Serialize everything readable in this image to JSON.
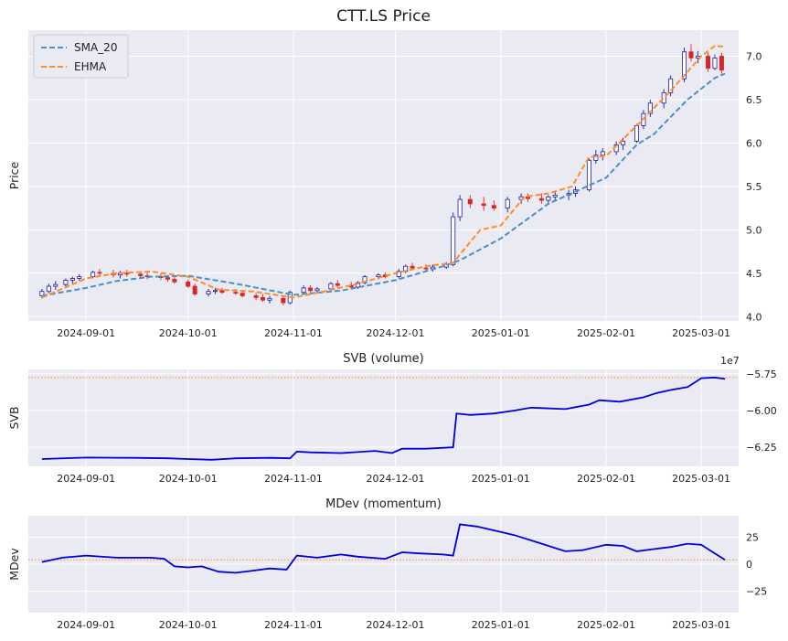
{
  "chart_data": [
    {
      "type": "candlestick",
      "title": "CTT.LS Price",
      "ylabel": "Price",
      "ylim": [
        3.95,
        7.3
      ],
      "yticks": [
        4.0,
        4.5,
        5.0,
        5.5,
        6.0,
        6.5,
        7.0
      ],
      "ytick_labels": [
        "4.0",
        "4.5",
        "5.0",
        "5.5",
        "6.0",
        "6.5",
        "7.0"
      ],
      "xrange": [
        "2024-08-15",
        "2025-03-12"
      ],
      "xticks": [
        "2024-09-01",
        "2024-10-01",
        "2024-11-01",
        "2024-12-01",
        "2025-01-01",
        "2025-02-01",
        "2025-03-01"
      ],
      "grid": true,
      "legend_position": "top-left",
      "colors": {
        "up": "#1a1aa6",
        "down": "#d62728",
        "sma": "#4a8fc7",
        "ehma": "#ff8c29",
        "background": "#eaeaf2"
      },
      "series": [
        {
          "name": "SMA_20",
          "style": "dashed",
          "color": "#4a8fc7",
          "points": [
            [
              "2024-08-19",
              4.24
            ],
            [
              "2024-09-01",
              4.33
            ],
            [
              "2024-09-10",
              4.41
            ],
            [
              "2024-09-20",
              4.46
            ],
            [
              "2024-10-01",
              4.47
            ],
            [
              "2024-10-15",
              4.38
            ],
            [
              "2024-11-01",
              4.25
            ],
            [
              "2024-11-15",
              4.3
            ],
            [
              "2024-12-01",
              4.42
            ],
            [
              "2024-12-15",
              4.58
            ],
            [
              "2024-12-20",
              4.65
            ],
            [
              "2025-01-01",
              4.9
            ],
            [
              "2025-01-15",
              5.3
            ],
            [
              "2025-02-01",
              5.6
            ],
            [
              "2025-02-10",
              5.98
            ],
            [
              "2025-02-15",
              6.1
            ],
            [
              "2025-02-25",
              6.5
            ],
            [
              "2025-03-05",
              6.75
            ],
            [
              "2025-03-08",
              6.8
            ]
          ]
        },
        {
          "name": "EHMA",
          "style": "dashed",
          "color": "#ff8c29",
          "points": [
            [
              "2024-08-19",
              4.22
            ],
            [
              "2024-09-01",
              4.44
            ],
            [
              "2024-09-10",
              4.5
            ],
            [
              "2024-09-20",
              4.52
            ],
            [
              "2024-10-01",
              4.46
            ],
            [
              "2024-10-10",
              4.31
            ],
            [
              "2024-10-20",
              4.29
            ],
            [
              "2024-11-01",
              4.22
            ],
            [
              "2024-11-10",
              4.29
            ],
            [
              "2024-11-20",
              4.38
            ],
            [
              "2024-12-01",
              4.5
            ],
            [
              "2024-12-10",
              4.58
            ],
            [
              "2024-12-18",
              4.62
            ],
            [
              "2024-12-26",
              5.0
            ],
            [
              "2025-01-01",
              5.05
            ],
            [
              "2025-01-08",
              5.38
            ],
            [
              "2025-01-15",
              5.42
            ],
            [
              "2025-01-22",
              5.5
            ],
            [
              "2025-01-27",
              5.84
            ],
            [
              "2025-02-01",
              5.85
            ],
            [
              "2025-02-10",
              6.2
            ],
            [
              "2025-02-20",
              6.6
            ],
            [
              "2025-03-01",
              7.0
            ],
            [
              "2025-03-05",
              7.12
            ],
            [
              "2025-03-08",
              7.11
            ]
          ]
        }
      ],
      "candles": [
        [
          "2024-08-19",
          4.24,
          4.32,
          4.21,
          4.29
        ],
        [
          "2024-08-21",
          4.29,
          4.38,
          4.27,
          4.35
        ],
        [
          "2024-08-23",
          4.35,
          4.41,
          4.31,
          4.37
        ],
        [
          "2024-08-26",
          4.37,
          4.44,
          4.34,
          4.42
        ],
        [
          "2024-08-28",
          4.42,
          4.46,
          4.38,
          4.44
        ],
        [
          "2024-08-30",
          4.44,
          4.49,
          4.41,
          4.46
        ],
        [
          "2024-09-03",
          4.46,
          4.53,
          4.44,
          4.51
        ],
        [
          "2024-09-05",
          4.51,
          4.55,
          4.47,
          4.5
        ],
        [
          "2024-09-09",
          4.5,
          4.54,
          4.45,
          4.48
        ],
        [
          "2024-09-11",
          4.48,
          4.53,
          4.44,
          4.5
        ],
        [
          "2024-09-13",
          4.5,
          4.54,
          4.46,
          4.49
        ],
        [
          "2024-09-17",
          4.49,
          4.52,
          4.44,
          4.47
        ],
        [
          "2024-09-19",
          4.47,
          4.51,
          4.43,
          4.46
        ],
        [
          "2024-09-23",
          4.46,
          4.5,
          4.42,
          4.45
        ],
        [
          "2024-09-25",
          4.45,
          4.48,
          4.4,
          4.43
        ],
        [
          "2024-09-27",
          4.43,
          4.47,
          4.38,
          4.4
        ],
        [
          "2024-10-01",
          4.4,
          4.43,
          4.33,
          4.35
        ],
        [
          "2024-10-03",
          4.35,
          4.38,
          4.24,
          4.26
        ],
        [
          "2024-10-07",
          4.26,
          4.32,
          4.23,
          4.29
        ],
        [
          "2024-10-09",
          4.29,
          4.33,
          4.26,
          4.3
        ],
        [
          "2024-10-11",
          4.3,
          4.33,
          4.26,
          4.28
        ],
        [
          "2024-10-15",
          4.28,
          4.32,
          4.25,
          4.27
        ],
        [
          "2024-10-17",
          4.27,
          4.3,
          4.22,
          4.24
        ],
        [
          "2024-10-21",
          4.24,
          4.27,
          4.19,
          4.22
        ],
        [
          "2024-10-23",
          4.22,
          4.26,
          4.17,
          4.19
        ],
        [
          "2024-10-25",
          4.19,
          4.24,
          4.15,
          4.21
        ],
        [
          "2024-10-29",
          4.21,
          4.24,
          4.13,
          4.16
        ],
        [
          "2024-10-31",
          4.16,
          4.3,
          4.14,
          4.28
        ],
        [
          "2024-11-04",
          4.28,
          4.36,
          4.26,
          4.33
        ],
        [
          "2024-11-06",
          4.33,
          4.36,
          4.28,
          4.3
        ],
        [
          "2024-11-08",
          4.3,
          4.34,
          4.27,
          4.32
        ],
        [
          "2024-11-12",
          4.32,
          4.4,
          4.3,
          4.38
        ],
        [
          "2024-11-14",
          4.38,
          4.42,
          4.34,
          4.36
        ],
        [
          "2024-11-18",
          4.36,
          4.4,
          4.32,
          4.34
        ],
        [
          "2024-11-20",
          4.34,
          4.41,
          4.32,
          4.39
        ],
        [
          "2024-11-22",
          4.39,
          4.48,
          4.37,
          4.46
        ],
        [
          "2024-11-26",
          4.46,
          4.5,
          4.43,
          4.48
        ],
        [
          "2024-11-28",
          4.48,
          4.51,
          4.44,
          4.46
        ],
        [
          "2024-12-02",
          4.46,
          4.55,
          4.44,
          4.52
        ],
        [
          "2024-12-04",
          4.52,
          4.6,
          4.5,
          4.58
        ],
        [
          "2024-12-06",
          4.58,
          4.62,
          4.54,
          4.56
        ],
        [
          "2024-12-10",
          4.56,
          4.6,
          4.52,
          4.55
        ],
        [
          "2024-12-12",
          4.55,
          4.6,
          4.52,
          4.57
        ],
        [
          "2024-12-16",
          4.57,
          4.63,
          4.55,
          4.6
        ],
        [
          "2024-12-18",
          4.6,
          5.2,
          4.58,
          5.15
        ],
        [
          "2024-12-20",
          5.15,
          5.4,
          5.1,
          5.35
        ],
        [
          "2024-12-23",
          5.35,
          5.4,
          5.25,
          5.3
        ],
        [
          "2024-12-27",
          5.3,
          5.38,
          5.22,
          5.28
        ],
        [
          "2024-12-30",
          5.28,
          5.34,
          5.22,
          5.25
        ],
        [
          "2025-01-03",
          5.25,
          5.38,
          5.2,
          5.35
        ],
        [
          "2025-01-07",
          5.35,
          5.42,
          5.3,
          5.38
        ],
        [
          "2025-01-09",
          5.38,
          5.42,
          5.32,
          5.36
        ],
        [
          "2025-01-13",
          5.36,
          5.42,
          5.3,
          5.34
        ],
        [
          "2025-01-15",
          5.34,
          5.4,
          5.3,
          5.38
        ],
        [
          "2025-01-17",
          5.38,
          5.44,
          5.34,
          5.4
        ],
        [
          "2025-01-21",
          5.4,
          5.46,
          5.34,
          5.42
        ],
        [
          "2025-01-23",
          5.42,
          5.5,
          5.38,
          5.46
        ],
        [
          "2025-01-27",
          5.46,
          5.82,
          5.44,
          5.8
        ],
        [
          "2025-01-29",
          5.8,
          5.92,
          5.76,
          5.86
        ],
        [
          "2025-01-31",
          5.86,
          5.94,
          5.8,
          5.9
        ],
        [
          "2025-02-04",
          5.9,
          6.02,
          5.86,
          5.98
        ],
        [
          "2025-02-06",
          5.98,
          6.06,
          5.92,
          6.02
        ],
        [
          "2025-02-10",
          6.02,
          6.22,
          6.0,
          6.2
        ],
        [
          "2025-02-12",
          6.2,
          6.38,
          6.16,
          6.34
        ],
        [
          "2025-02-14",
          6.34,
          6.5,
          6.3,
          6.46
        ],
        [
          "2025-02-18",
          6.46,
          6.62,
          6.4,
          6.58
        ],
        [
          "2025-02-20",
          6.58,
          6.78,
          6.54,
          6.74
        ],
        [
          "2025-02-24",
          6.74,
          7.1,
          6.7,
          7.05
        ],
        [
          "2025-02-26",
          7.05,
          7.14,
          6.94,
          6.98
        ],
        [
          "2025-02-28",
          6.98,
          7.06,
          6.92,
          7.0
        ],
        [
          "2025-03-03",
          7.0,
          7.04,
          6.82,
          6.86
        ],
        [
          "2025-03-05",
          6.86,
          7.02,
          6.84,
          6.98
        ],
        [
          "2025-03-07",
          7.0,
          7.04,
          6.8,
          6.84
        ]
      ]
    },
    {
      "type": "line",
      "title": "SVB (volume)",
      "ylabel": "SVB",
      "scale_label": "1e7",
      "ylim": [
        -63.8,
        -57.2
      ],
      "yticks": [
        -62.5,
        -60.0,
        -57.5
      ],
      "ytick_labels": [
        "−6.25",
        "−6.00",
        "−5.75"
      ],
      "xrange": [
        "2024-08-15",
        "2025-03-12"
      ],
      "xticks": [
        "2024-09-01",
        "2024-10-01",
        "2024-11-01",
        "2024-12-01",
        "2025-01-01",
        "2025-02-01",
        "2025-03-01"
      ],
      "grid": true,
      "reference_line": {
        "value": -57.75,
        "color": "#ff8c29",
        "style": "dotted"
      },
      "series": [
        {
          "name": "",
          "color": "#0000dd",
          "points": [
            [
              "2024-08-19",
              -63.3
            ],
            [
              "2024-09-01",
              -63.2
            ],
            [
              "2024-09-15",
              -63.22
            ],
            [
              "2024-09-25",
              -63.25
            ],
            [
              "2024-10-01",
              -63.3
            ],
            [
              "2024-10-08",
              -63.35
            ],
            [
              "2024-10-15",
              -63.25
            ],
            [
              "2024-10-25",
              -63.22
            ],
            [
              "2024-10-31",
              -63.25
            ],
            [
              "2024-11-02",
              -62.8
            ],
            [
              "2024-11-06",
              -62.85
            ],
            [
              "2024-11-15",
              -62.9
            ],
            [
              "2024-11-25",
              -62.75
            ],
            [
              "2024-11-30",
              -62.9
            ],
            [
              "2024-12-03",
              -62.6
            ],
            [
              "2024-12-10",
              -62.6
            ],
            [
              "2024-12-18",
              -62.5
            ],
            [
              "2024-12-19",
              -60.2
            ],
            [
              "2024-12-23",
              -60.3
            ],
            [
              "2024-12-30",
              -60.2
            ],
            [
              "2025-01-05",
              -60.0
            ],
            [
              "2025-01-10",
              -59.8
            ],
            [
              "2025-01-20",
              -59.9
            ],
            [
              "2025-01-27",
              -59.6
            ],
            [
              "2025-01-30",
              -59.3
            ],
            [
              "2025-02-05",
              -59.4
            ],
            [
              "2025-02-12",
              -59.1
            ],
            [
              "2025-02-16",
              -58.8
            ],
            [
              "2025-02-20",
              -58.6
            ],
            [
              "2025-02-25",
              -58.4
            ],
            [
              "2025-03-01",
              -57.8
            ],
            [
              "2025-03-05",
              -57.75
            ],
            [
              "2025-03-08",
              -57.85
            ]
          ]
        }
      ]
    },
    {
      "type": "line",
      "title": "MDev (momentum)",
      "ylabel": "MDev",
      "ylim": [
        -45,
        45
      ],
      "yticks": [
        -25,
        0,
        25
      ],
      "ytick_labels": [
        "−25",
        "0",
        "25"
      ],
      "xrange": [
        "2024-08-15",
        "2025-03-12"
      ],
      "xticks": [
        "2024-09-01",
        "2024-10-01",
        "2024-11-01",
        "2024-12-01",
        "2025-01-01",
        "2025-02-01",
        "2025-03-01"
      ],
      "grid": true,
      "reference_line": {
        "value": 4,
        "color": "#ff8c29",
        "style": "dotted"
      },
      "series": [
        {
          "name": "",
          "color": "#0000dd",
          "points": [
            [
              "2024-08-19",
              2
            ],
            [
              "2024-08-25",
              6
            ],
            [
              "2024-09-01",
              8
            ],
            [
              "2024-09-10",
              6
            ],
            [
              "2024-09-20",
              6
            ],
            [
              "2024-09-24",
              5
            ],
            [
              "2024-09-27",
              -2
            ],
            [
              "2024-10-01",
              -3
            ],
            [
              "2024-10-05",
              -2
            ],
            [
              "2024-10-10",
              -7
            ],
            [
              "2024-10-15",
              -8
            ],
            [
              "2024-10-20",
              -6
            ],
            [
              "2024-10-25",
              -4
            ],
            [
              "2024-10-30",
              -5
            ],
            [
              "2024-11-02",
              8
            ],
            [
              "2024-11-08",
              6
            ],
            [
              "2024-11-15",
              9
            ],
            [
              "2024-11-20",
              7
            ],
            [
              "2024-11-28",
              5
            ],
            [
              "2024-12-03",
              11
            ],
            [
              "2024-12-08",
              10
            ],
            [
              "2024-12-15",
              9
            ],
            [
              "2024-12-18",
              8
            ],
            [
              "2024-12-20",
              37
            ],
            [
              "2024-12-25",
              35
            ],
            [
              "2025-01-01",
              30
            ],
            [
              "2025-01-05",
              27
            ],
            [
              "2025-01-12",
              20
            ],
            [
              "2025-01-20",
              12
            ],
            [
              "2025-01-25",
              13
            ],
            [
              "2025-02-01",
              18
            ],
            [
              "2025-02-06",
              17
            ],
            [
              "2025-02-10",
              12
            ],
            [
              "2025-02-15",
              14
            ],
            [
              "2025-02-20",
              16
            ],
            [
              "2025-02-25",
              19
            ],
            [
              "2025-03-01",
              18
            ],
            [
              "2025-03-05",
              10
            ],
            [
              "2025-03-08",
              4
            ]
          ]
        }
      ]
    }
  ]
}
